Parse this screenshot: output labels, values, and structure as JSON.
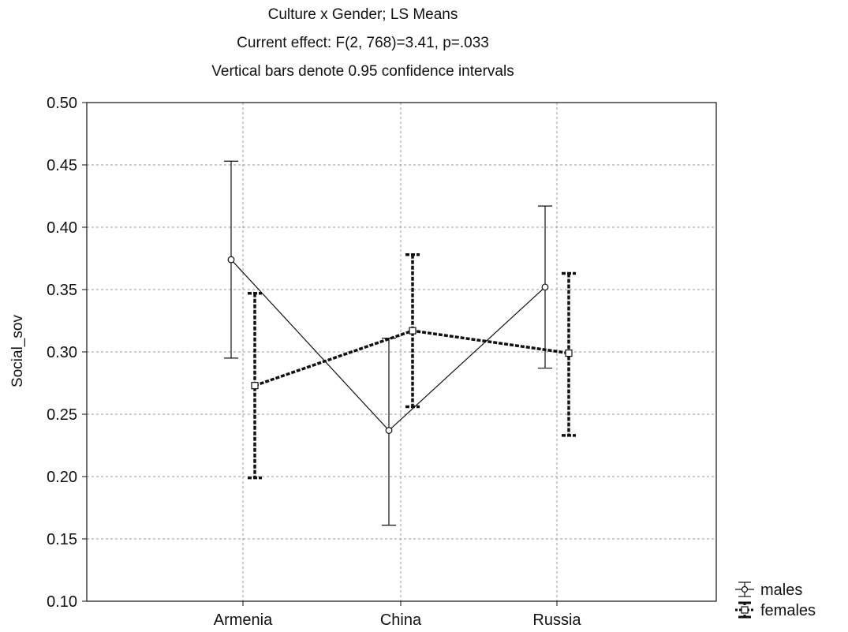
{
  "titles": {
    "line1": "Culture x Gender; LS Means",
    "line2": "Current effect: F(2, 768)=3.41, p=.033",
    "line3": "Vertical bars denote 0.95 confidence intervals"
  },
  "chart_data": {
    "type": "line",
    "ylabel": "Social_sov",
    "xlabel": "",
    "categories": [
      "Armenia",
      "China",
      "Russia"
    ],
    "ylim": [
      0.1,
      0.5
    ],
    "yticks": [
      "0.50",
      "0.45",
      "0.40",
      "0.35",
      "0.30",
      "0.25",
      "0.20",
      "0.15",
      "0.10"
    ],
    "grid": true,
    "legend_position": "bottom-right",
    "error_bars": "0.95 confidence intervals",
    "series": [
      {
        "name": "males",
        "marker": "circle",
        "line_style": "solid",
        "values": [
          0.374,
          0.237,
          0.352
        ],
        "ci_low": [
          0.295,
          0.161,
          0.287
        ],
        "ci_high": [
          0.453,
          0.311,
          0.417
        ]
      },
      {
        "name": "females",
        "marker": "square",
        "line_style": "dashed",
        "values": [
          0.273,
          0.317,
          0.299
        ],
        "ci_low": [
          0.199,
          0.256,
          0.233
        ],
        "ci_high": [
          0.347,
          0.378,
          0.363
        ]
      }
    ]
  }
}
